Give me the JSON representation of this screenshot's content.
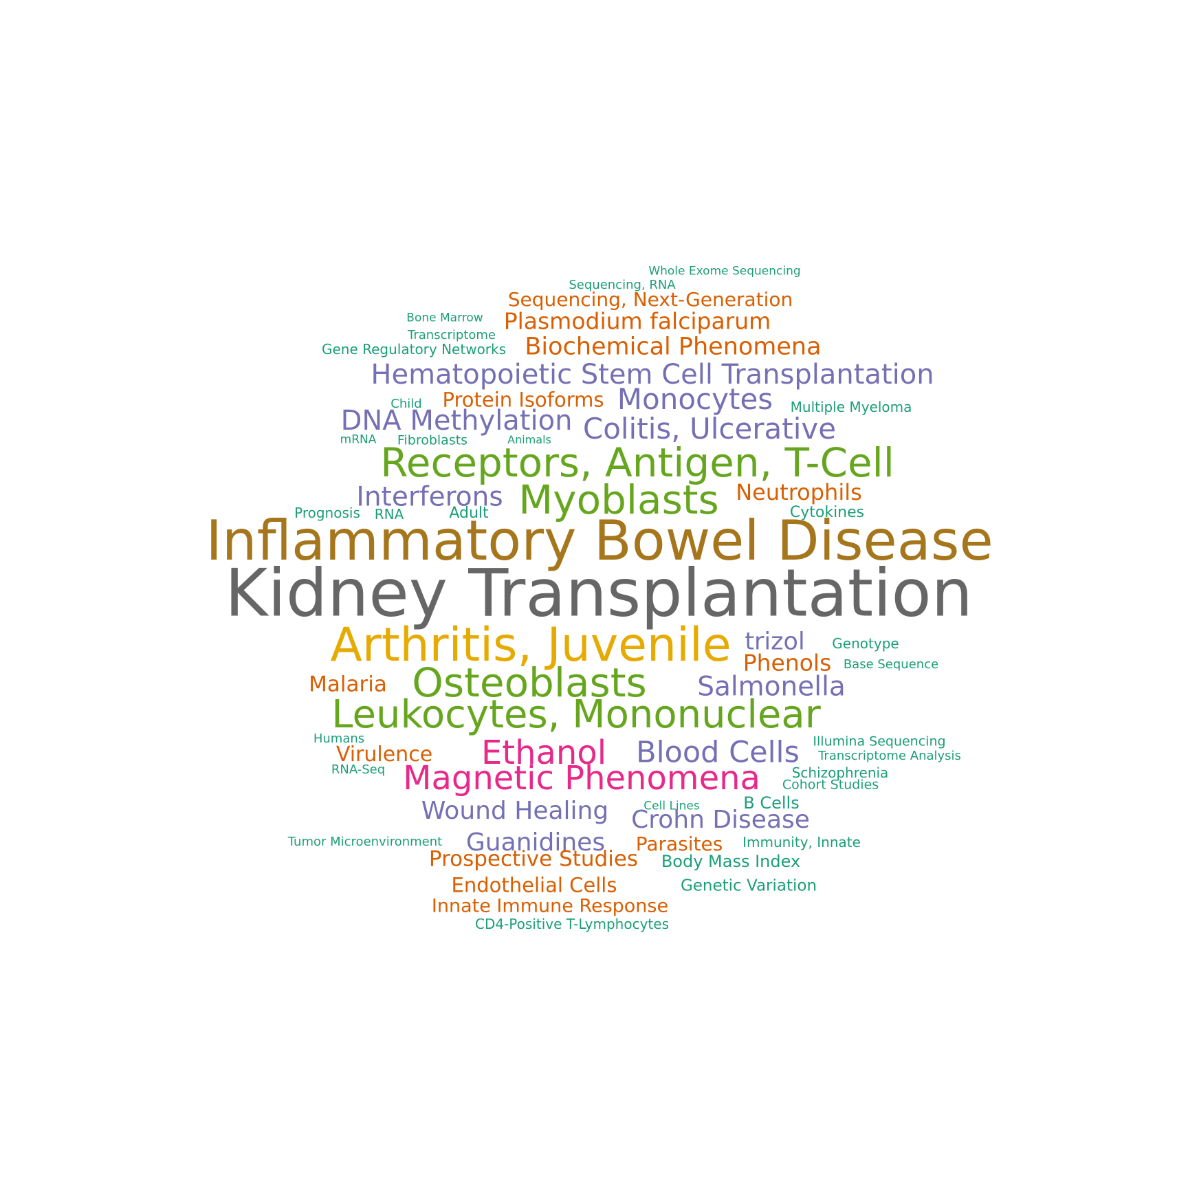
{
  "palette": {
    "teal": "#1b9e77",
    "orange": "#d95f02",
    "purple": "#7570b3",
    "pink": "#e7298a",
    "green": "#66a61e",
    "gold": "#e6ab02",
    "brown": "#a6761d",
    "gray": "#666666"
  },
  "words": [
    {
      "text": "Whole Exome Sequencing",
      "color": "#1b9e77"
    },
    {
      "text": "Sequencing, RNA",
      "color": "#1b9e77"
    },
    {
      "text": "Sequencing, Next-Generation",
      "color": "#d95f02"
    },
    {
      "text": "Bone Marrow",
      "color": "#1b9e77"
    },
    {
      "text": "Plasmodium falciparum",
      "color": "#d95f02"
    },
    {
      "text": "Transcriptome",
      "color": "#1b9e77"
    },
    {
      "text": "Gene Regulatory Networks",
      "color": "#1b9e77"
    },
    {
      "text": "Biochemical Phenomena",
      "color": "#d95f02"
    },
    {
      "text": "Hematopoietic Stem Cell Transplantation",
      "color": "#7570b3"
    },
    {
      "text": "Child",
      "color": "#1b9e77"
    },
    {
      "text": "Protein Isoforms",
      "color": "#d95f02"
    },
    {
      "text": "Monocytes",
      "color": "#7570b3"
    },
    {
      "text": "Multiple Myeloma",
      "color": "#1b9e77"
    },
    {
      "text": "DNA Methylation",
      "color": "#7570b3"
    },
    {
      "text": "Colitis, Ulcerative",
      "color": "#7570b3"
    },
    {
      "text": "mRNA",
      "color": "#1b9e77"
    },
    {
      "text": "Fibroblasts",
      "color": "#1b9e77"
    },
    {
      "text": "Animals",
      "color": "#1b9e77"
    },
    {
      "text": "Receptors, Antigen, T-Cell",
      "color": "#66a61e"
    },
    {
      "text": "Interferons",
      "color": "#7570b3"
    },
    {
      "text": "Myoblasts",
      "color": "#66a61e"
    },
    {
      "text": "Neutrophils",
      "color": "#d95f02"
    },
    {
      "text": "Prognosis",
      "color": "#1b9e77"
    },
    {
      "text": "RNA",
      "color": "#1b9e77"
    },
    {
      "text": "Adult",
      "color": "#1b9e77"
    },
    {
      "text": "Cytokines",
      "color": "#1b9e77"
    },
    {
      "text": "Inflammatory Bowel Disease",
      "color": "#a6761d"
    },
    {
      "text": "Kidney Transplantation",
      "color": "#666666"
    },
    {
      "text": "Arthritis, Juvenile",
      "color": "#e6ab02"
    },
    {
      "text": "trizol",
      "color": "#7570b3"
    },
    {
      "text": "Genotype",
      "color": "#1b9e77"
    },
    {
      "text": "Phenols",
      "color": "#d95f02"
    },
    {
      "text": "Base Sequence",
      "color": "#1b9e77"
    },
    {
      "text": "Malaria",
      "color": "#d95f02"
    },
    {
      "text": "Osteoblasts",
      "color": "#66a61e"
    },
    {
      "text": "Salmonella",
      "color": "#7570b3"
    },
    {
      "text": "Leukocytes, Mononuclear",
      "color": "#66a61e"
    },
    {
      "text": "Humans",
      "color": "#1b9e77"
    },
    {
      "text": "Ethanol",
      "color": "#e7298a"
    },
    {
      "text": "Blood Cells",
      "color": "#7570b3"
    },
    {
      "text": "Illumina Sequencing",
      "color": "#1b9e77"
    },
    {
      "text": "Virulence",
      "color": "#d95f02"
    },
    {
      "text": "Transcriptome Analysis",
      "color": "#1b9e77"
    },
    {
      "text": "RNA-Seq",
      "color": "#1b9e77"
    },
    {
      "text": "Magnetic Phenomena",
      "color": "#e7298a"
    },
    {
      "text": "Schizophrenia",
      "color": "#1b9e77"
    },
    {
      "text": "Cohort Studies",
      "color": "#1b9e77"
    },
    {
      "text": "Wound Healing",
      "color": "#7570b3"
    },
    {
      "text": "Cell Lines",
      "color": "#1b9e77"
    },
    {
      "text": "B Cells",
      "color": "#1b9e77"
    },
    {
      "text": "Crohn Disease",
      "color": "#7570b3"
    },
    {
      "text": "Tumor Microenvironment",
      "color": "#1b9e77"
    },
    {
      "text": "Guanidines",
      "color": "#7570b3"
    },
    {
      "text": "Parasites",
      "color": "#d95f02"
    },
    {
      "text": "Immunity, Innate",
      "color": "#1b9e77"
    },
    {
      "text": "Prospective Studies",
      "color": "#d95f02"
    },
    {
      "text": "Body Mass Index",
      "color": "#1b9e77"
    },
    {
      "text": "Endothelial Cells",
      "color": "#d95f02"
    },
    {
      "text": "Genetic Variation",
      "color": "#1b9e77"
    },
    {
      "text": "Innate Immune Response",
      "color": "#d95f02"
    },
    {
      "text": "CD4-Positive T-Lymphocytes",
      "color": "#1b9e77"
    }
  ]
}
